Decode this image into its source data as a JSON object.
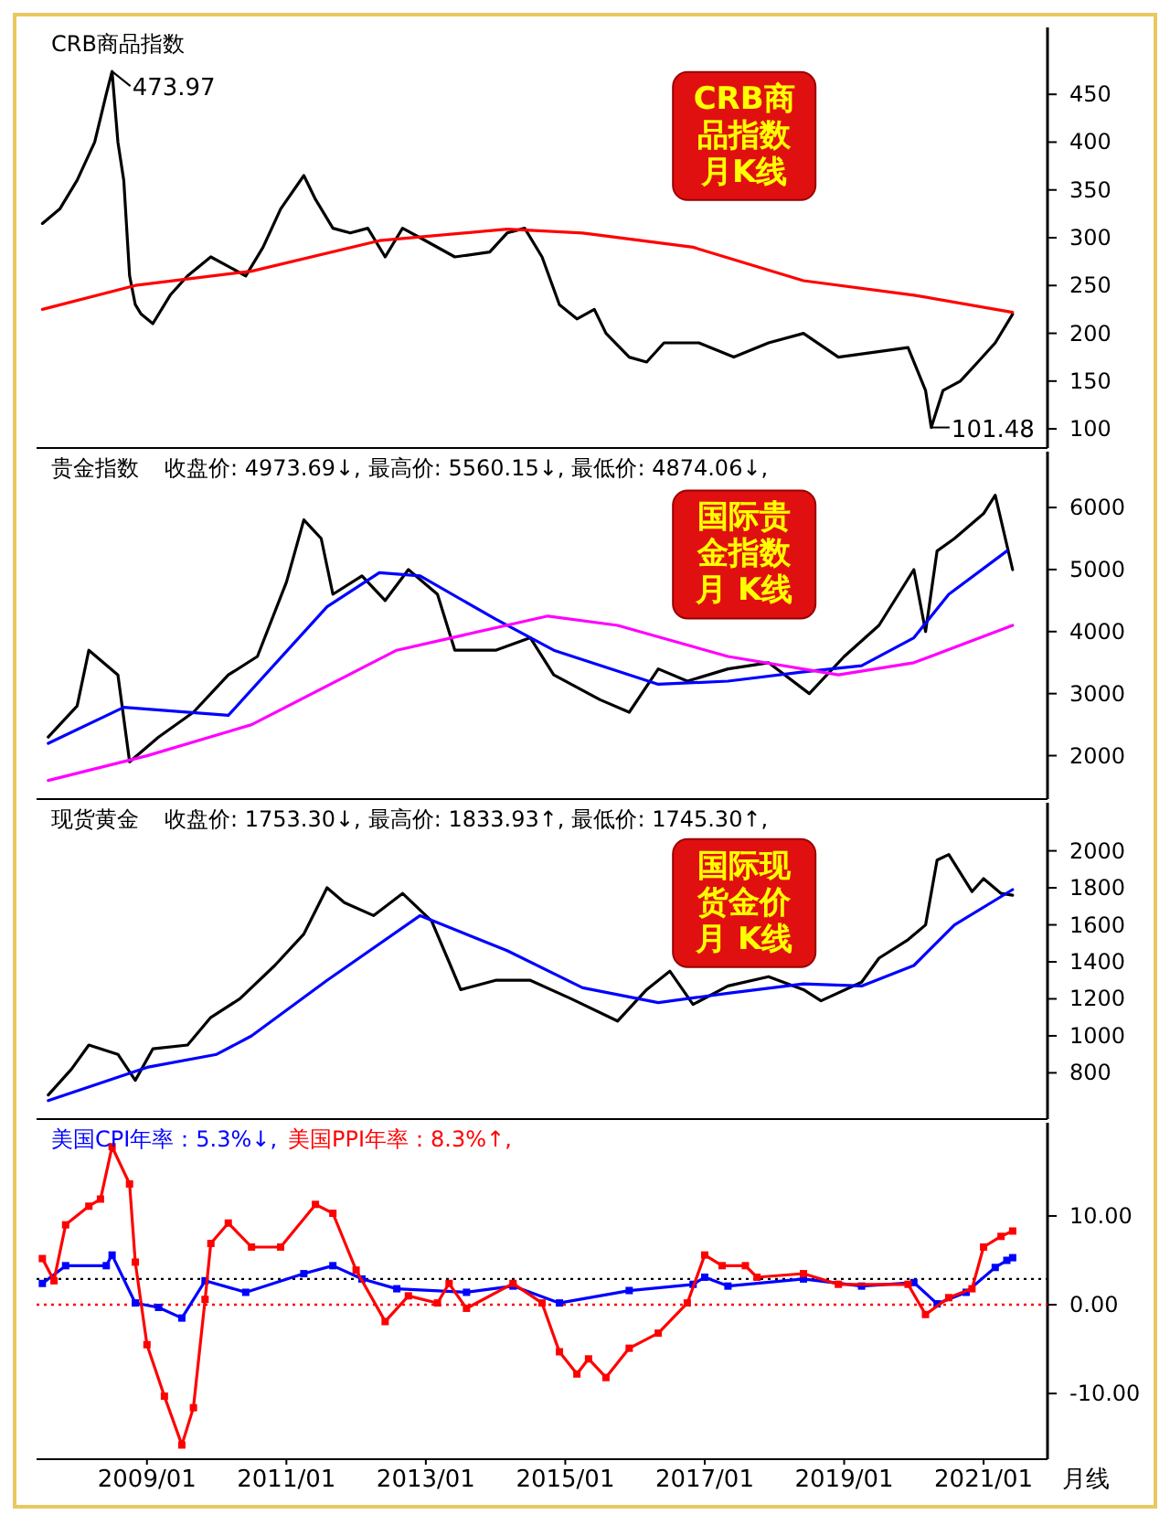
{
  "chart_data": [
    {
      "type": "line",
      "title": "CRB商品指数",
      "annotations": [
        "CRB商品指数月K线",
        {
          "text": "473.97",
          "x": "2008-07",
          "y": 473.97
        },
        {
          "text": "101.48",
          "x": "2020-04",
          "y": 101.48
        }
      ],
      "xlim": [
        "2007-06",
        "2021-12"
      ],
      "ylim": [
        80,
        520
      ],
      "yticks": [
        100,
        150,
        200,
        250,
        300,
        350,
        400,
        450
      ],
      "tick_labels": "y",
      "series": [
        {
          "color": "#000000",
          "x": [
            "2007-07",
            "2007-10",
            "2008-01",
            "2008-04",
            "2008-06",
            "2008-07",
            "2008-08",
            "2008-09",
            "2008-10",
            "2008-11",
            "2008-12",
            "2009-02",
            "2009-05",
            "2009-08",
            "2009-12",
            "2010-03",
            "2010-06",
            "2010-09",
            "2010-12",
            "2011-04",
            "2011-06",
            "2011-09",
            "2011-12",
            "2012-03",
            "2012-06",
            "2012-09",
            "2012-12",
            "2013-06",
            "2013-12",
            "2014-03",
            "2014-06",
            "2014-09",
            "2014-12",
            "2015-03",
            "2015-06",
            "2015-08",
            "2015-12",
            "2016-03",
            "2016-06",
            "2016-12",
            "2017-06",
            "2017-12",
            "2018-06",
            "2018-12",
            "2019-06",
            "2019-12",
            "2020-03",
            "2020-04",
            "2020-06",
            "2020-09",
            "2020-12",
            "2021-03",
            "2021-06"
          ],
          "values": [
            315,
            330,
            360,
            400,
            450,
            473.97,
            400,
            360,
            260,
            230,
            220,
            210,
            240,
            260,
            280,
            270,
            260,
            290,
            330,
            365,
            340,
            310,
            305,
            310,
            280,
            310,
            300,
            280,
            285,
            305,
            310,
            280,
            230,
            215,
            225,
            200,
            175,
            170,
            190,
            190,
            175,
            190,
            200,
            175,
            180,
            185,
            140,
            101.48,
            140,
            150,
            170,
            190,
            220
          ]
        },
        {
          "color": "#ff0000",
          "x": [
            "2007-07",
            "2008-11",
            "2010-07",
            "2012-05",
            "2014-03",
            "2015-04",
            "2016-11",
            "2018-06",
            "2020-01",
            "2021-06"
          ],
          "values": [
            225,
            250,
            265,
            297,
            309,
            305,
            290,
            255,
            240,
            222
          ]
        }
      ]
    },
    {
      "type": "line",
      "title": "贵金指数",
      "annotations": [
        "收盘价: 4973.69↓,",
        "最高价: 5560.15↓,",
        "最低价: 4874.06↓,",
        "国际贵金指数月 K线"
      ],
      "xlim": [
        "2007-06",
        "2021-12"
      ],
      "ylim": [
        1300,
        6900
      ],
      "yticks": [
        2000,
        3000,
        4000,
        5000,
        6000
      ],
      "tick_labels": "y",
      "series": [
        {
          "color": "#000000",
          "x": [
            "2007-08",
            "2008-01",
            "2008-03",
            "2008-08",
            "2008-10",
            "2009-03",
            "2009-09",
            "2010-03",
            "2010-08",
            "2011-01",
            "2011-04",
            "2011-07",
            "2011-09",
            "2012-02",
            "2012-06",
            "2012-10",
            "2013-03",
            "2013-06",
            "2014-01",
            "2014-07",
            "2014-11",
            "2015-07",
            "2015-12",
            "2016-05",
            "2016-10",
            "2017-05",
            "2017-12",
            "2018-07",
            "2019-01",
            "2019-07",
            "2020-01",
            "2020-03",
            "2020-05",
            "2020-08",
            "2021-01",
            "2021-03",
            "2021-06"
          ],
          "values": [
            2300,
            2800,
            3700,
            3300,
            1900,
            2300,
            2700,
            3300,
            3600,
            4800,
            5800,
            5500,
            4600,
            4900,
            4500,
            5000,
            4600,
            3700,
            3700,
            3900,
            3300,
            2900,
            2700,
            3400,
            3200,
            3400,
            3500,
            3000,
            3600,
            4100,
            5000,
            4000,
            5300,
            5500,
            5900,
            6200,
            5000
          ]
        },
        {
          "color": "#0000ff",
          "x": [
            "2007-08",
            "2008-09",
            "2010-03",
            "2011-08",
            "2012-05",
            "2012-12",
            "2014-01",
            "2014-11",
            "2016-05",
            "2017-05",
            "2018-06",
            "2019-04",
            "2020-01",
            "2020-07",
            "2021-05"
          ],
          "values": [
            2200,
            2780,
            2650,
            4400,
            4950,
            4900,
            4200,
            3700,
            3150,
            3200,
            3350,
            3450,
            3900,
            4600,
            5300
          ]
        },
        {
          "color": "#ff00ff",
          "x": [
            "2007-08",
            "2009-01",
            "2010-07",
            "2012-08",
            "2014-10",
            "2015-10",
            "2017-05",
            "2018-12",
            "2020-01",
            "2021-06"
          ],
          "values": [
            1600,
            2000,
            2500,
            3700,
            4250,
            4100,
            3600,
            3300,
            3500,
            4100
          ]
        }
      ]
    },
    {
      "type": "line",
      "title": "现货黄金",
      "annotations": [
        "收盘价: 1753.30↓,",
        "最高价: 1833.93↑,",
        "最低价: 1745.30↑,",
        "国际现货金价月 K线"
      ],
      "xlim": [
        "2007-06",
        "2021-12"
      ],
      "ylim": [
        550,
        2260
      ],
      "yticks": [
        800,
        1000,
        1200,
        1400,
        1600,
        1800,
        2000
      ],
      "tick_labels": "y",
      "series": [
        {
          "color": "#000000",
          "x": [
            "2007-08",
            "2007-12",
            "2008-03",
            "2008-08",
            "2008-11",
            "2009-02",
            "2009-08",
            "2009-12",
            "2010-05",
            "2010-11",
            "2011-04",
            "2011-08",
            "2011-11",
            "2012-04",
            "2012-09",
            "2013-02",
            "2013-05",
            "2013-07",
            "2014-01",
            "2014-07",
            "2015-02",
            "2015-10",
            "2016-03",
            "2016-07",
            "2016-11",
            "2017-05",
            "2017-12",
            "2018-06",
            "2018-09",
            "2019-04",
            "2019-07",
            "2019-12",
            "2020-03",
            "2020-05",
            "2020-07",
            "2020-11",
            "2021-01",
            "2021-04",
            "2021-06"
          ],
          "values": [
            680,
            820,
            950,
            900,
            760,
            930,
            950,
            1100,
            1200,
            1380,
            1550,
            1800,
            1720,
            1650,
            1770,
            1620,
            1400,
            1250,
            1300,
            1300,
            1200,
            1080,
            1250,
            1350,
            1170,
            1270,
            1320,
            1250,
            1190,
            1290,
            1420,
            1520,
            1600,
            1950,
            1980,
            1780,
            1850,
            1770,
            1760
          ]
        },
        {
          "color": "#0000ff",
          "x": [
            "2007-08",
            "2009-01",
            "2010-01",
            "2010-07",
            "2011-08",
            "2012-12",
            "2014-03",
            "2015-04",
            "2016-05",
            "2017-05",
            "2018-06",
            "2019-04",
            "2020-01",
            "2020-08",
            "2021-06"
          ],
          "values": [
            650,
            830,
            900,
            1000,
            1300,
            1650,
            1460,
            1260,
            1180,
            1230,
            1280,
            1270,
            1380,
            1600,
            1790
          ]
        }
      ]
    },
    {
      "type": "line",
      "xlabel": "月线",
      "marker": "square",
      "xlim": [
        "2007-06",
        "2021-12"
      ],
      "xticks": [
        {
          "value": "2009-01",
          "label": "2009/01"
        },
        {
          "value": "2011-01",
          "label": "2011/01"
        },
        {
          "value": "2013-01",
          "label": "2013/01"
        },
        {
          "value": "2015-01",
          "label": "2015/01"
        },
        {
          "value": "2017-01",
          "label": "2017/01"
        },
        {
          "value": "2019-01",
          "label": "2019/01"
        },
        {
          "value": "2021-01",
          "label": "2021/01"
        }
      ],
      "ylim": [
        -17.4,
        20.5
      ],
      "yticks": [
        {
          "value": -10,
          "label": "-10.00"
        },
        {
          "value": 0,
          "label": "0.00"
        },
        {
          "value": 10,
          "label": "10.00"
        }
      ],
      "ref_lines": [
        {
          "axis": "y",
          "value": 0,
          "color": "#ff0000",
          "line_style": "dotted"
        },
        {
          "axis": "y",
          "value": 2.9,
          "color": "#000000",
          "line_style": "dotted"
        }
      ],
      "series": [
        {
          "name": "美国CPI年率：5.3%↓,",
          "color": "#0000ff",
          "x": [
            "2007-07",
            "2007-11",
            "2008-06",
            "2008-07",
            "2008-11",
            "2009-03",
            "2009-07",
            "2009-11",
            "2010-06",
            "2011-04",
            "2011-09",
            "2012-02",
            "2012-08",
            "2013-08",
            "2014-04",
            "2014-12",
            "2015-12",
            "2016-11",
            "2017-01",
            "2017-05",
            "2018-06",
            "2019-04",
            "2020-01",
            "2020-05",
            "2020-10",
            "2021-03",
            "2021-05",
            "2021-06"
          ],
          "values": [
            2.4,
            4.4,
            4.4,
            5.6,
            0.2,
            -0.3,
            -1.5,
            2.7,
            1.4,
            3.5,
            4.4,
            2.9,
            1.8,
            1.4,
            2.1,
            0.2,
            1.6,
            2.3,
            3.1,
            2.1,
            2.9,
            2.1,
            2.5,
            0.1,
            1.4,
            4.2,
            5.0,
            5.3
          ]
        },
        {
          "name": "美国PPI年率：8.3%↑,",
          "color": "#ff0000",
          "x": [
            "2007-07",
            "2007-09",
            "2007-11",
            "2008-03",
            "2008-05",
            "2008-07",
            "2008-10",
            "2008-11",
            "2009-01",
            "2009-04",
            "2009-07",
            "2009-09",
            "2009-11",
            "2009-12",
            "2010-03",
            "2010-07",
            "2010-12",
            "2011-06",
            "2011-09",
            "2012-01",
            "2012-06",
            "2012-10",
            "2013-03",
            "2013-05",
            "2013-08",
            "2014-04",
            "2014-09",
            "2014-12",
            "2015-03",
            "2015-05",
            "2015-08",
            "2015-12",
            "2016-05",
            "2016-10",
            "2017-01",
            "2017-04",
            "2017-08",
            "2017-10",
            "2018-06",
            "2018-12",
            "2019-12",
            "2020-03",
            "2020-07",
            "2020-11",
            "2021-01",
            "2021-04",
            "2021-06"
          ],
          "values": [
            5.2,
            2.7,
            9.0,
            11.1,
            11.9,
            17.8,
            13.6,
            4.8,
            -4.5,
            -10.3,
            -15.8,
            -11.6,
            0.6,
            6.9,
            9.2,
            6.5,
            6.5,
            11.3,
            10.3,
            3.9,
            -1.9,
            1.0,
            0.2,
            2.4,
            -0.4,
            2.4,
            0.2,
            -5.3,
            -7.8,
            -6.1,
            -8.2,
            -4.9,
            -3.2,
            0.2,
            5.6,
            4.4,
            4.4,
            3.1,
            3.5,
            2.3,
            2.3,
            -1.1,
            0.8,
            1.8,
            6.5,
            7.7,
            8.3
          ]
        }
      ]
    }
  ]
}
